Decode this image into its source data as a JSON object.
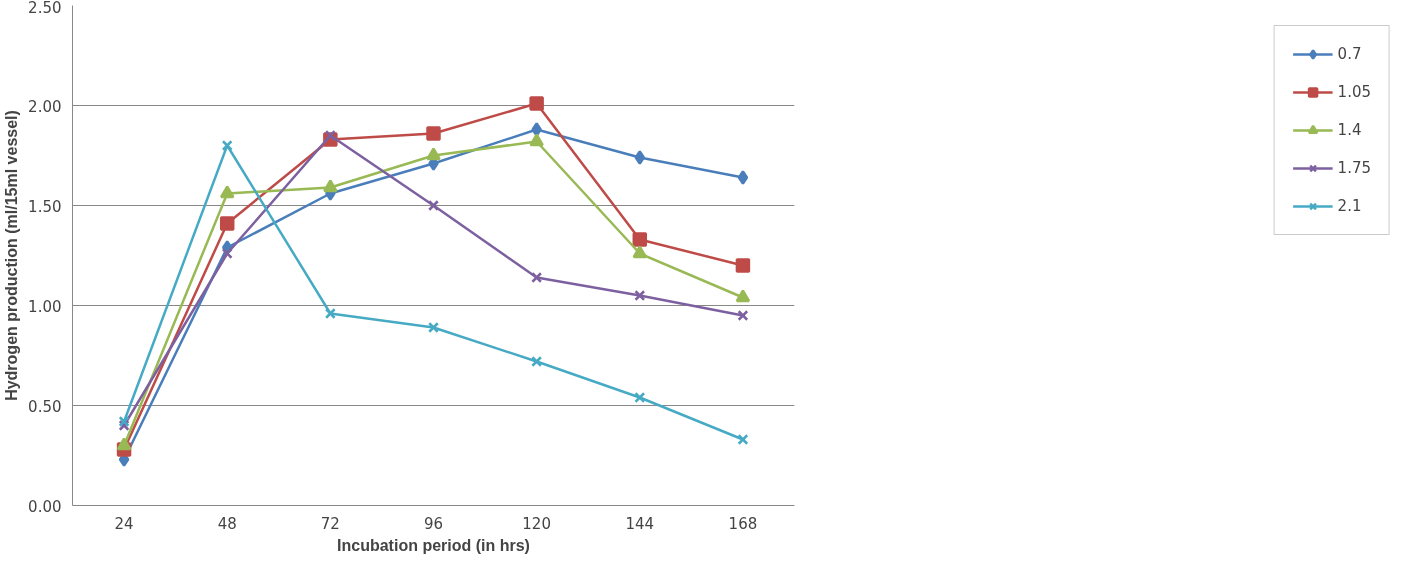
{
  "chart_data": {
    "type": "line",
    "xlabel": "Incubation period (in hrs)",
    "ylabel": "Hydrogen production (ml/15ml vessel)",
    "categories": [
      "24",
      "48",
      "72",
      "96",
      "120",
      "144",
      "168"
    ],
    "ylim": [
      0,
      2.5
    ],
    "yticks": [
      {
        "value": 0,
        "label": "0.00"
      },
      {
        "value": 0.5,
        "label": "0.50"
      },
      {
        "value": 1,
        "label": "1.00"
      },
      {
        "value": 1.5,
        "label": "1.50"
      },
      {
        "value": 2,
        "label": "2.00"
      },
      {
        "value": 2.5,
        "label": "2.50"
      }
    ],
    "grid": "y",
    "legend": "right",
    "line_style": "solid",
    "series": [
      {
        "name": "0.7",
        "color": "#4a7ebb",
        "marker": "diamond",
        "values": [
          0.23,
          1.29,
          1.56,
          1.71,
          1.88,
          1.74,
          1.64
        ]
      },
      {
        "name": "1.05",
        "color": "#be4b48",
        "marker": "square",
        "values": [
          0.28,
          1.41,
          1.83,
          1.86,
          2.01,
          1.33,
          1.2
        ]
      },
      {
        "name": "1.4",
        "color": "#98b954",
        "marker": "triangle",
        "values": [
          0.3,
          1.56,
          1.59,
          1.75,
          1.82,
          1.26,
          1.04
        ]
      },
      {
        "name": "1.75",
        "color": "#7d60a0",
        "marker": "cross",
        "values": [
          0.4,
          1.26,
          1.85,
          1.5,
          1.14,
          1.05,
          0.95
        ]
      },
      {
        "name": "2.1",
        "color": "#46aac5",
        "marker": "cross",
        "values": [
          0.42,
          1.8,
          0.96,
          0.89,
          0.72,
          0.54,
          0.33
        ]
      }
    ]
  }
}
